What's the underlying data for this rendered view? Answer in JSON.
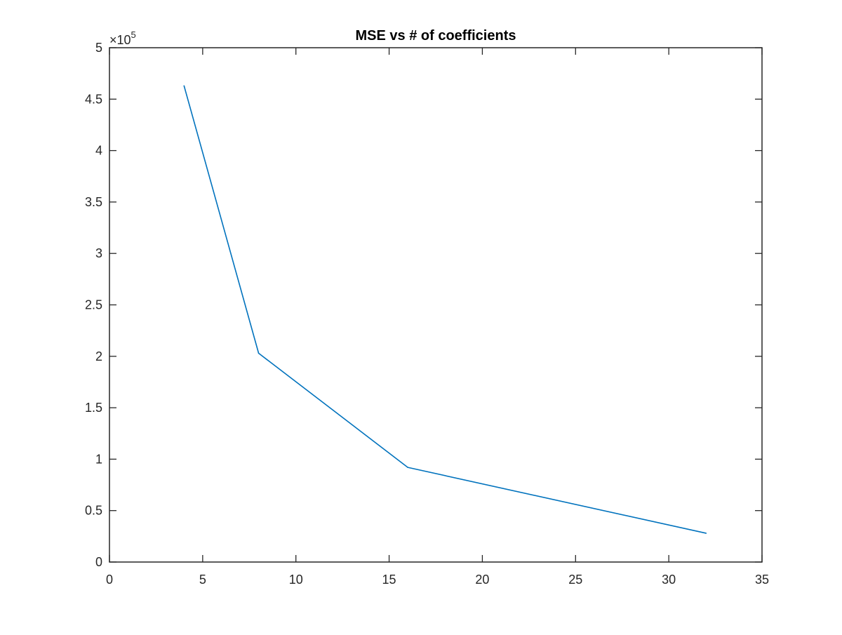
{
  "chart_data": {
    "type": "line",
    "title": "MSE vs # of coefficients",
    "xlabel": "",
    "ylabel": "",
    "y_exponent_label": "×10",
    "y_exponent": "5",
    "xlim": [
      0,
      35
    ],
    "ylim": [
      0,
      500000
    ],
    "xticks": [
      0,
      5,
      10,
      15,
      20,
      25,
      30,
      35
    ],
    "xtick_labels": [
      "0",
      "5",
      "10",
      "15",
      "20",
      "25",
      "30",
      "35"
    ],
    "yticks": [
      0,
      50000,
      100000,
      150000,
      200000,
      250000,
      300000,
      350000,
      400000,
      450000,
      500000
    ],
    "ytick_labels": [
      "0",
      "0.5",
      "1",
      "1.5",
      "2",
      "2.5",
      "3",
      "3.5",
      "4",
      "4.5",
      "5"
    ],
    "grid": false,
    "series": [
      {
        "x": [
          4,
          8,
          16,
          32
        ],
        "values": [
          463000,
          203000,
          92000,
          28000
        ],
        "color": "#0072BD"
      }
    ]
  }
}
